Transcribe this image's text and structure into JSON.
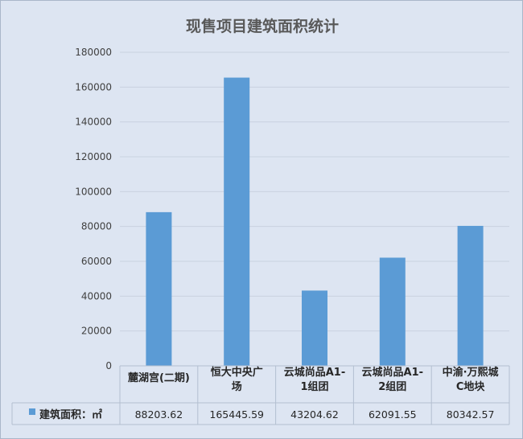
{
  "chart_data": {
    "type": "bar",
    "title": "现售项目建筑面积统计",
    "categories": [
      [
        "麓湖宫(二期)"
      ],
      [
        "恒大中央广",
        "场"
      ],
      [
        "云城尚品A1-",
        "1组团"
      ],
      [
        "云城尚品A1-",
        "2组团"
      ],
      [
        "中渝·万熙城",
        "C地块"
      ]
    ],
    "series": [
      {
        "name": "建筑面积：㎡",
        "values": [
          88203.62,
          165445.59,
          43204.62,
          62091.55,
          80342.57
        ],
        "labels": [
          "88203.62",
          "165445.59",
          "43204.62",
          "62091.55",
          "80342.57"
        ]
      }
    ],
    "ylim": [
      0,
      180000
    ],
    "yticks": [
      0,
      20000,
      40000,
      60000,
      80000,
      100000,
      120000,
      140000,
      160000,
      180000
    ],
    "grid": true,
    "data_table": true,
    "colors": {
      "bar": "#5b9bd5",
      "grid": "#c9d2e0",
      "border": "#b3bfd0"
    }
  }
}
